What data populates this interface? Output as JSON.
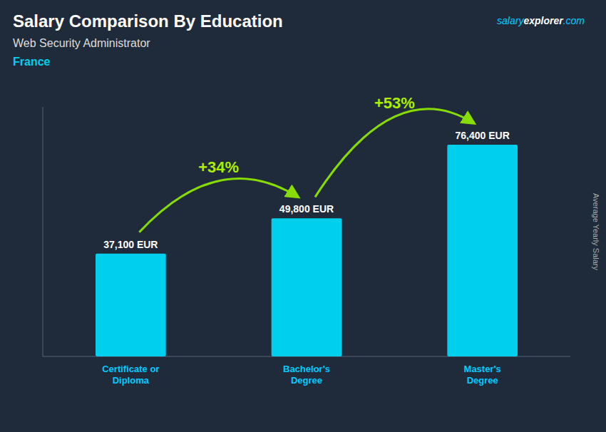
{
  "chart_data": {
    "type": "bar",
    "title": "Salary Comparison By Education",
    "subtitle": "Web Security Administrator",
    "country": "France",
    "categories": [
      "Certificate or\nDiploma",
      "Bachelor's\nDegree",
      "Master's\nDegree"
    ],
    "values": [
      37100,
      49800,
      76400
    ],
    "value_labels": [
      "37,100 EUR",
      "49,800 EUR",
      "76,400 EUR"
    ],
    "data_labels": true,
    "annotations": [
      "+34%",
      "+53%"
    ],
    "watermark": [
      "salary",
      "explorer",
      ".com"
    ],
    "ylabel": "Average Yearly Salary",
    "ylim": [
      0,
      90000
    ],
    "tick_labels": false,
    "grid": false,
    "color": "#00cfee"
  }
}
